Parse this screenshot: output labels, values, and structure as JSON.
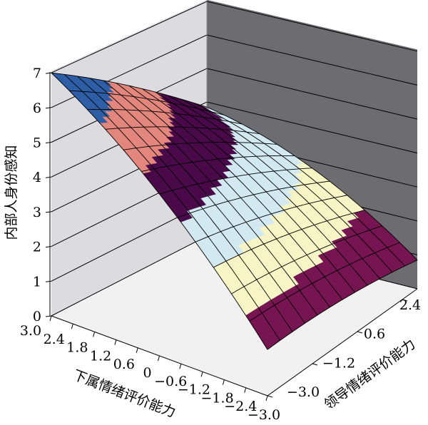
{
  "chart_data": {
    "type": "surface3d",
    "title": "",
    "xlabel": "下属情绪评价能力",
    "ylabel": "领导情绪评价能力",
    "zlabel": "内部人身份感知",
    "xlim": [
      -3.0,
      3.0
    ],
    "ylim": [
      -3.0,
      3.0
    ],
    "zlim": [
      0,
      7
    ],
    "xticks": [
      "3.0",
      "2.4",
      "1.8",
      "1.2",
      "0.6",
      "0",
      "−0.6",
      "−1.2",
      "−1.8",
      "−2.4",
      "−3.0"
    ],
    "xtick_values": [
      3.0,
      2.4,
      1.8,
      1.2,
      0.6,
      0,
      -0.6,
      -1.2,
      -1.8,
      -2.4,
      -3.0
    ],
    "yticks": [
      "−3.0",
      "−1.2",
      "0.6",
      "2.4"
    ],
    "ytick_values": [
      -3.0,
      -1.2,
      0.6,
      2.4
    ],
    "zticks": [
      "0",
      "1",
      "2",
      "3",
      "4",
      "5",
      "6",
      "7"
    ],
    "surface_corner_values": [
      {
        "x": 3.0,
        "y": -3.0,
        "z": 7.0
      },
      {
        "x": -3.0,
        "y": -3.0,
        "z": 1.3
      },
      {
        "x": -3.0,
        "y": 3.0,
        "z": 0.85
      },
      {
        "x": 3.0,
        "y": 3.0,
        "z": 3.85
      },
      {
        "x": 3.0,
        "y": 0.0,
        "z": 5.7
      },
      {
        "x": 0.0,
        "y": 0.0,
        "z": 3.85
      }
    ],
    "color_bands": [
      {
        "min": 6,
        "max": 7.5,
        "color": "#2d5ea6"
      },
      {
        "min": 5,
        "max": 6,
        "color": "#e3867d"
      },
      {
        "min": 4,
        "max": 5,
        "color": "#4a0a4a"
      },
      {
        "min": 3,
        "max": 4,
        "color": "#d3e9f2"
      },
      {
        "min": 2,
        "max": 3,
        "color": "#f7f5c6"
      },
      {
        "min": -1,
        "max": 2,
        "color": "#771552"
      }
    ],
    "grid": true,
    "pane_colors": {
      "left": "#dcdbe0",
      "back": "#6d6c70",
      "floor": "#f1f1f1"
    }
  }
}
